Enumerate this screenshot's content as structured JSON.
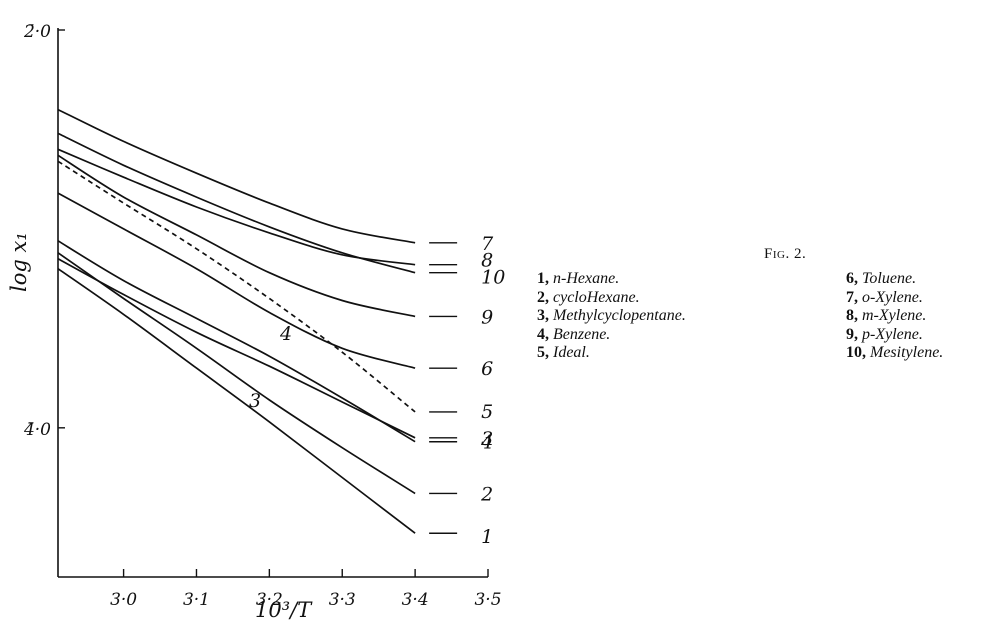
{
  "figure_title": "Fig. 2.",
  "legend": {
    "left": [
      {
        "num": "1,",
        "text": "n-Hexane."
      },
      {
        "num": "2,",
        "text": "cycloHexane."
      },
      {
        "num": "3,",
        "text": "Methylcyclopentane."
      },
      {
        "num": "4,",
        "text": "Benzene."
      },
      {
        "num": "5,",
        "text": "Ideal."
      }
    ],
    "right": [
      {
        "num": "6,",
        "text": "Toluene."
      },
      {
        "num": "7,",
        "text": "o-Xylene."
      },
      {
        "num": "8,",
        "text": "m-Xylene."
      },
      {
        "num": "9,",
        "text": "p-Xylene."
      },
      {
        "num": "10,",
        "text": "Mesitylene."
      }
    ]
  },
  "chart_data": {
    "type": "line",
    "xlabel": "10³/T",
    "ylabel": "log x₁",
    "xlim": [
      2.91,
      3.5
    ],
    "ylim": [
      -4.75,
      -2.0
    ],
    "x_ticks": [
      {
        "value": 3.0,
        "label": "3·0"
      },
      {
        "value": 3.1,
        "label": "3·1"
      },
      {
        "value": 3.2,
        "label": "3·2"
      },
      {
        "value": 3.3,
        "label": "3·3"
      },
      {
        "value": 3.4,
        "label": "3·4"
      },
      {
        "value": 3.5,
        "label": "3·5"
      }
    ],
    "y_ticks": [
      {
        "value": -2.0,
        "label": "2̄·0"
      },
      {
        "value": -4.0,
        "label": "4̄·0"
      }
    ],
    "series": [
      {
        "name": "1",
        "label": "1",
        "dashed": false,
        "points": [
          [
            2.91,
            -3.2
          ],
          [
            3.0,
            -3.43
          ],
          [
            3.1,
            -3.7
          ],
          [
            3.2,
            -3.97
          ],
          [
            3.3,
            -4.25
          ],
          [
            3.4,
            -4.53
          ]
        ]
      },
      {
        "name": "2",
        "label": "2",
        "dashed": false,
        "points": [
          [
            2.91,
            -3.12
          ],
          [
            3.0,
            -3.35
          ],
          [
            3.1,
            -3.6
          ],
          [
            3.2,
            -3.86
          ],
          [
            3.3,
            -4.1
          ],
          [
            3.4,
            -4.33
          ]
        ]
      },
      {
        "name": "3",
        "label": "3",
        "dashed": false,
        "points": [
          [
            2.91,
            -3.15
          ],
          [
            3.0,
            -3.33
          ],
          [
            3.1,
            -3.52
          ],
          [
            3.2,
            -3.69
          ],
          [
            3.3,
            -3.87
          ],
          [
            3.4,
            -4.05
          ]
        ]
      },
      {
        "name": "4",
        "label": "4",
        "dashed": false,
        "points": [
          [
            2.91,
            -3.06
          ],
          [
            3.0,
            -3.26
          ],
          [
            3.1,
            -3.45
          ],
          [
            3.2,
            -3.64
          ],
          [
            3.3,
            -3.85
          ],
          [
            3.4,
            -4.07
          ]
        ]
      },
      {
        "name": "5",
        "label": "5",
        "dashed": true,
        "points": [
          [
            2.91,
            -2.66
          ],
          [
            3.0,
            -2.87
          ],
          [
            3.1,
            -3.1
          ],
          [
            3.2,
            -3.35
          ],
          [
            3.3,
            -3.62
          ],
          [
            3.4,
            -3.92
          ]
        ]
      },
      {
        "name": "6",
        "label": "6",
        "dashed": false,
        "points": [
          [
            2.91,
            -2.82
          ],
          [
            3.0,
            -3.0
          ],
          [
            3.1,
            -3.2
          ],
          [
            3.2,
            -3.42
          ],
          [
            3.3,
            -3.6
          ],
          [
            3.4,
            -3.7
          ]
        ]
      },
      {
        "name": "7",
        "label": "7",
        "dashed": false,
        "points": [
          [
            2.91,
            -2.4
          ],
          [
            3.0,
            -2.56
          ],
          [
            3.1,
            -2.72
          ],
          [
            3.2,
            -2.87
          ],
          [
            3.3,
            -3.0
          ],
          [
            3.4,
            -3.07
          ]
        ]
      },
      {
        "name": "8",
        "label": "8",
        "dashed": false,
        "points": [
          [
            2.91,
            -2.6
          ],
          [
            3.0,
            -2.74
          ],
          [
            3.1,
            -2.89
          ],
          [
            3.2,
            -3.02
          ],
          [
            3.3,
            -3.13
          ],
          [
            3.4,
            -3.18
          ]
        ]
      },
      {
        "name": "9",
        "label": "9",
        "dashed": false,
        "points": [
          [
            2.91,
            -2.63
          ],
          [
            3.0,
            -2.84
          ],
          [
            3.1,
            -3.03
          ],
          [
            3.2,
            -3.22
          ],
          [
            3.3,
            -3.36
          ],
          [
            3.4,
            -3.44
          ]
        ]
      },
      {
        "name": "10",
        "label": "10",
        "dashed": false,
        "points": [
          [
            2.91,
            -2.52
          ],
          [
            3.0,
            -2.68
          ],
          [
            3.1,
            -2.84
          ],
          [
            3.2,
            -2.99
          ],
          [
            3.3,
            -3.12
          ],
          [
            3.4,
            -3.22
          ]
        ]
      }
    ]
  }
}
